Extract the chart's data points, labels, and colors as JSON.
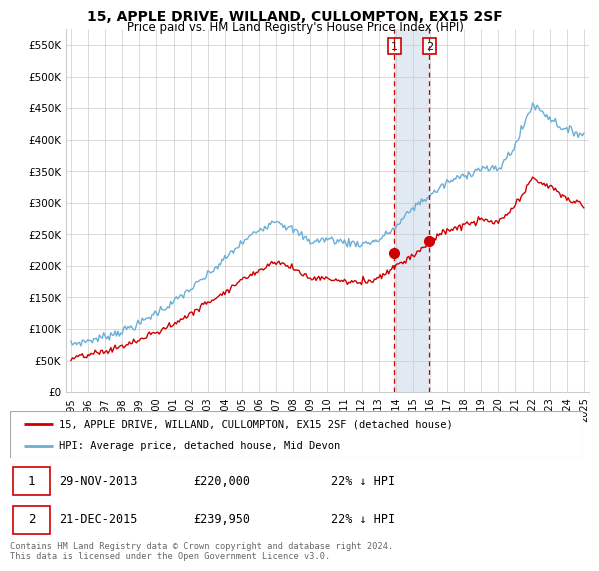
{
  "title": "15, APPLE DRIVE, WILLAND, CULLOMPTON, EX15 2SF",
  "subtitle": "Price paid vs. HM Land Registry's House Price Index (HPI)",
  "ylabel_ticks": [
    "£0",
    "£50K",
    "£100K",
    "£150K",
    "£200K",
    "£250K",
    "£300K",
    "£350K",
    "£400K",
    "£450K",
    "£500K",
    "£550K"
  ],
  "ytick_vals": [
    0,
    50000,
    100000,
    150000,
    200000,
    250000,
    300000,
    350000,
    400000,
    450000,
    500000,
    550000
  ],
  "ylim": [
    0,
    575000
  ],
  "xlim_start": 1994.7,
  "xlim_end": 2025.3,
  "transaction1": {
    "date_num": 2013.91,
    "price": 220000,
    "label": "1"
  },
  "transaction2": {
    "date_num": 2015.97,
    "price": 239950,
    "label": "2"
  },
  "hpi_color": "#6baed6",
  "price_color": "#cc0000",
  "legend_label1": "15, APPLE DRIVE, WILLAND, CULLOMPTON, EX15 2SF (detached house)",
  "legend_label2": "HPI: Average price, detached house, Mid Devon",
  "table_row1": [
    "1",
    "29-NOV-2013",
    "£220,000",
    "22% ↓ HPI"
  ],
  "table_row2": [
    "2",
    "21-DEC-2015",
    "£239,950",
    "22% ↓ HPI"
  ],
  "footnote": "Contains HM Land Registry data © Crown copyright and database right 2024.\nThis data is licensed under the Open Government Licence v3.0.",
  "background_color": "#ffffff",
  "grid_color": "#cccccc",
  "highlight_color": "#dce6f1"
}
